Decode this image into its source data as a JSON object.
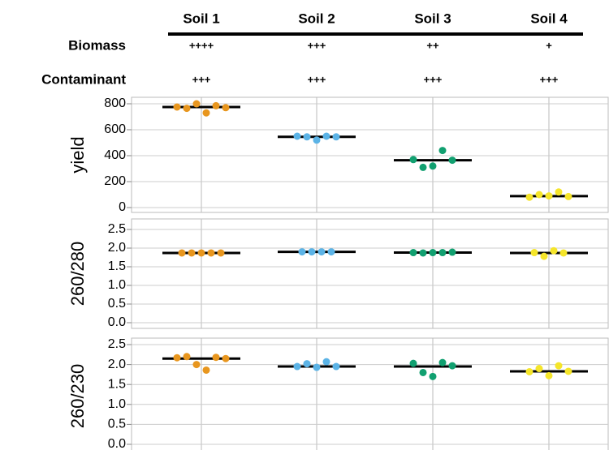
{
  "header_table": {
    "columns": [
      "Soil 1",
      "Soil 2",
      "Soil 3",
      "Soil 4"
    ],
    "rows": [
      {
        "label": "Biomass",
        "values": [
          "++++",
          "+++",
          "++",
          "+"
        ]
      },
      {
        "label": "Contaminant",
        "values": [
          "+++",
          "+++",
          "+++",
          "+++"
        ]
      }
    ]
  },
  "chart_data": [
    {
      "type": "strip",
      "y_label": "yield",
      "ylim": [
        0,
        850
      ],
      "yticks": [
        0,
        200,
        400,
        600,
        800
      ],
      "grid": true,
      "groups": [
        {
          "color": "#e8961e",
          "values": [
            775,
            765,
            800,
            730,
            785,
            770
          ],
          "mean": 775
        },
        {
          "color": "#5bb3e6",
          "values": [
            550,
            545,
            520,
            550,
            545
          ],
          "mean": 545
        },
        {
          "color": "#11a070",
          "values": [
            370,
            310,
            320,
            440,
            365
          ],
          "mean": 365
        },
        {
          "color": "#f5e52a",
          "values": [
            80,
            100,
            90,
            120,
            85
          ],
          "mean": 88
        }
      ]
    },
    {
      "type": "strip",
      "y_label": "260/280",
      "ylim": [
        0,
        2.5
      ],
      "yticks": [
        {
          "value": 0,
          "label": "0.0"
        },
        0.5,
        {
          "value": 1,
          "label": "1.0"
        },
        1.5,
        {
          "value": 2,
          "label": "2.0"
        },
        2.5
      ],
      "grid": true,
      "groups": [
        {
          "color": "#e8961e",
          "values": [
            1.87,
            1.87,
            1.87,
            1.87,
            1.87
          ],
          "mean": 1.87
        },
        {
          "color": "#5bb3e6",
          "values": [
            1.9,
            1.9,
            1.9,
            1.9
          ],
          "mean": 1.9
        },
        {
          "color": "#11a070",
          "values": [
            1.88,
            1.87,
            1.88,
            1.88,
            1.89
          ],
          "mean": 1.88
        },
        {
          "color": "#f5e52a",
          "values": [
            1.88,
            1.78,
            1.93,
            1.87
          ],
          "mean": 1.87
        }
      ]
    },
    {
      "type": "strip",
      "y_label": "260/230",
      "ylim": [
        0,
        2.5
      ],
      "yticks": [
        {
          "value": 0,
          "label": "0.0"
        },
        0.5,
        {
          "value": 1,
          "label": "1.0"
        },
        1.5,
        {
          "value": 2,
          "label": "2.0"
        },
        2.5
      ],
      "grid": true,
      "groups": [
        {
          "color": "#e8961e",
          "values": [
            2.17,
            2.2,
            2.0,
            1.86,
            2.18,
            2.15
          ],
          "mean": 2.15
        },
        {
          "color": "#5bb3e6",
          "values": [
            1.95,
            2.02,
            1.93,
            2.07,
            1.95
          ],
          "mean": 1.95
        },
        {
          "color": "#11a070",
          "values": [
            2.03,
            1.8,
            1.7,
            2.05,
            1.97
          ],
          "mean": 1.95
        },
        {
          "color": "#f5e52a",
          "values": [
            1.82,
            1.9,
            1.72,
            1.97,
            1.83
          ],
          "mean": 1.83
        }
      ]
    }
  ]
}
